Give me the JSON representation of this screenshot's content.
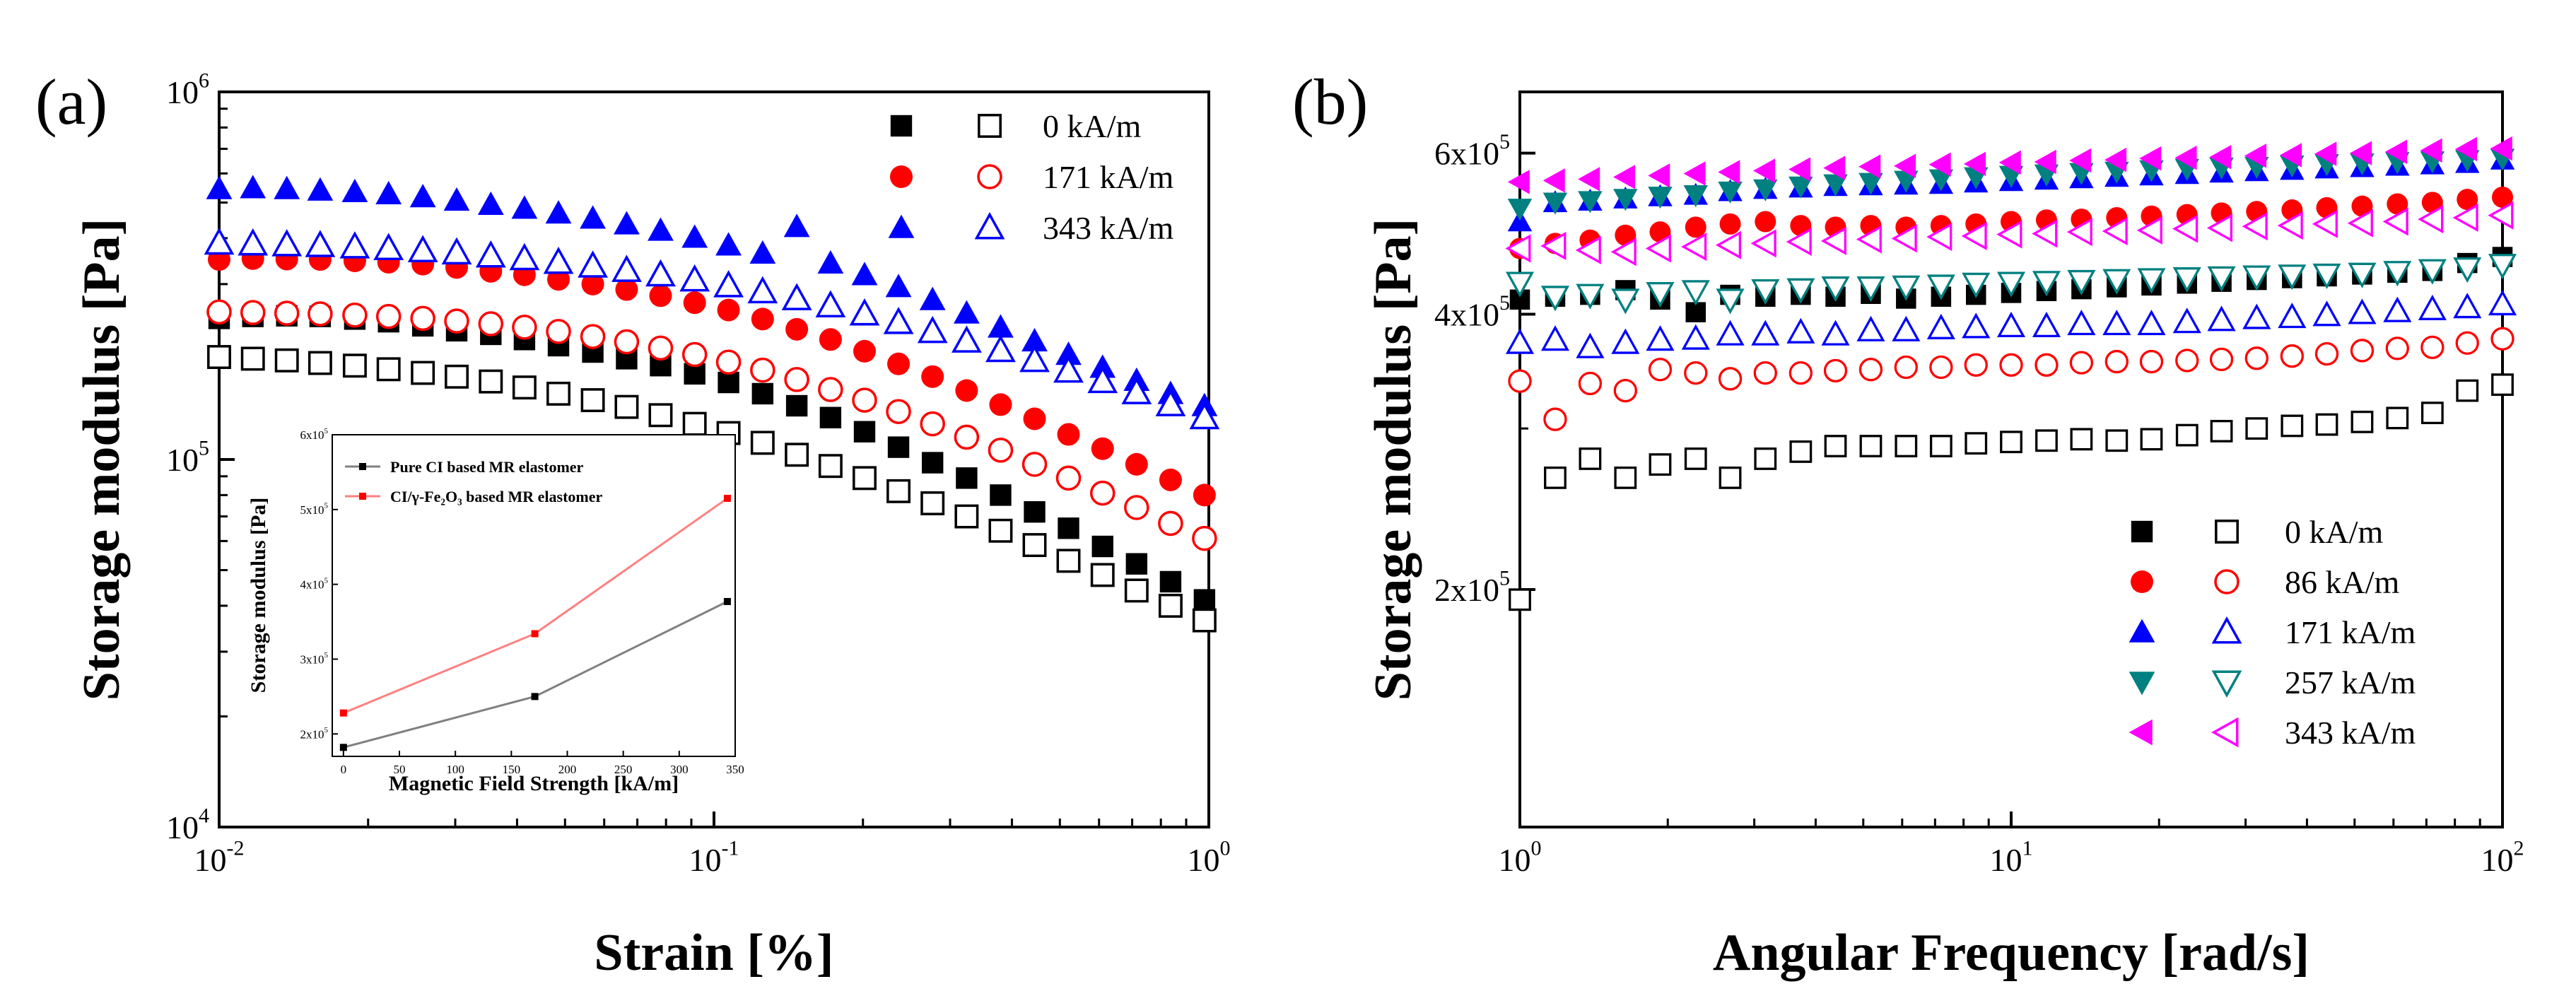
{
  "chart_data": [
    {
      "type": "scatter",
      "panel_label": "(a)",
      "xlabel": "Strain [%]",
      "ylabel": "Storage modulus [Pa]",
      "xscale": "log",
      "yscale": "log",
      "xlim": [
        0.01,
        1
      ],
      "ylim": [
        10000,
        1000000
      ],
      "x_ticks": [
        {
          "value": 0.01,
          "base": "10",
          "exp": "-2"
        },
        {
          "value": 0.1,
          "base": "10",
          "exp": "-1"
        },
        {
          "value": 1,
          "base": "10",
          "exp": "0"
        }
      ],
      "y_ticks": [
        {
          "value": 10000,
          "base": "10",
          "exp": "4"
        },
        {
          "value": 100000,
          "base": "10",
          "exp": "5"
        },
        {
          "value": 1000000,
          "base": "10",
          "exp": "6"
        }
      ],
      "legend_position": "top-right",
      "legend": [
        {
          "label": "0 kA/m",
          "color": "#000000",
          "marker": "square"
        },
        {
          "label": "171 kA/m",
          "color": "#ff0000",
          "marker": "circle"
        },
        {
          "label": "343 kA/m",
          "color": "#0000ff",
          "marker": "triangle-up"
        }
      ],
      "x": [
        0.01,
        0.0117,
        0.0137,
        0.016,
        0.0188,
        0.022,
        0.0258,
        0.0302,
        0.0354,
        0.0414,
        0.0485,
        0.0569,
        0.0666,
        0.078,
        0.0914,
        0.107,
        0.1254,
        0.147,
        0.172,
        0.2015,
        0.236,
        0.2765,
        0.324,
        0.3795,
        0.4445,
        0.5205,
        0.61,
        0.7145,
        0.837,
        0.98
      ],
      "series": [
        {
          "name": "CI/γ-Fe2O3 based",
          "field": "0 kA/m",
          "filled": true,
          "marker": "square",
          "color": "#000000",
          "values": [
            242000,
            245000,
            246000,
            245000,
            241000,
            237000,
            231000,
            224000,
            219000,
            212000,
            204000,
            196000,
            188000,
            180000,
            171000,
            162000,
            151000,
            140000,
            130000,
            119000,
            108000,
            98000,
            89000,
            80000,
            72000,
            65000,
            58000,
            52000,
            46500,
            41500
          ]
        },
        {
          "name": "Pure CI based",
          "field": "0 kA/m",
          "filled": false,
          "marker": "square",
          "color": "#000000",
          "values": [
            190000,
            188000,
            186000,
            183000,
            180000,
            176000,
            172000,
            168000,
            163000,
            157000,
            151000,
            145000,
            139000,
            132000,
            125000,
            118000,
            111000,
            103000,
            96000,
            89000,
            82000,
            76000,
            70000,
            64000,
            58500,
            53000,
            48500,
            44000,
            40000,
            36500
          ]
        },
        {
          "name": "CI/γ-Fe2O3 based",
          "field": "171 kA/m",
          "filled": true,
          "marker": "circle",
          "color": "#ff0000",
          "values": [
            350000,
            352000,
            351000,
            350000,
            347000,
            344000,
            340000,
            333000,
            325000,
            318000,
            309000,
            300000,
            290000,
            279000,
            267000,
            255000,
            241000,
            226000,
            212000,
            197000,
            182000,
            168000,
            154000,
            141000,
            129000,
            117000,
            107000,
            97000,
            88000,
            80000
          ]
        },
        {
          "name": "Pure CI based",
          "field": "171 kA/m",
          "filled": false,
          "marker": "circle",
          "color": "#ff0000",
          "values": [
            252000,
            251000,
            250000,
            249000,
            247000,
            245000,
            242000,
            238000,
            234000,
            229000,
            223000,
            216000,
            209000,
            201000,
            193000,
            184000,
            175000,
            165000,
            155000,
            145000,
            135000,
            125000,
            115000,
            106000,
            97000,
            89000,
            81000,
            74000,
            67000,
            61000
          ]
        },
        {
          "name": "CI/γ-Fe2O3 based",
          "field": "343 kA/m",
          "filled": true,
          "marker": "triangle-up",
          "color": "#0000ff",
          "values": [
            545000,
            548000,
            545000,
            540000,
            535000,
            528000,
            518000,
            507000,
            494000,
            482000,
            468000,
            453000,
            437000,
            420000,
            402000,
            383000,
            364000,
            430000,
            342000,
            318000,
            295000,
            272000,
            250000,
            229000,
            210000,
            193000,
            178000,
            164000,
            151000,
            140000
          ]
        },
        {
          "name": "Pure CI based",
          "field": "343 kA/m",
          "filled": false,
          "marker": "triangle-up",
          "color": "#0000ff",
          "values": [
            388000,
            386000,
            384000,
            382000,
            379000,
            375000,
            370000,
            365000,
            358000,
            352000,
            344000,
            336000,
            327000,
            318000,
            308000,
            297000,
            286000,
            274000,
            262000,
            249000,
            236000,
            223000,
            210000,
            198000,
            186000,
            174000,
            163000,
            152000,
            141000,
            130000
          ]
        }
      ],
      "inset": {
        "type": "line",
        "xlabel": "Magnetic Field Strength [kA/m]",
        "ylabel": "Storage modulus [Pa]",
        "xlim": [
          -10,
          350
        ],
        "ylim": [
          170000,
          600000
        ],
        "x_ticks": [
          "0",
          "50",
          "100",
          "150",
          "200",
          "250",
          "300",
          "350"
        ],
        "x_tick_values": [
          0,
          50,
          100,
          150,
          200,
          250,
          300,
          350
        ],
        "y_ticks": [
          {
            "value": 200000,
            "base": "2x10",
            "exp": "5"
          },
          {
            "value": 300000,
            "base": "3x10",
            "exp": "5"
          },
          {
            "value": 400000,
            "base": "4x10",
            "exp": "5"
          },
          {
            "value": 500000,
            "base": "5x10",
            "exp": "5"
          },
          {
            "value": 600000,
            "base": "6x10",
            "exp": "5"
          }
        ],
        "legend_position": "top-left",
        "x": [
          0,
          171,
          343
        ],
        "series": [
          {
            "name": "Pure CI based MR elastomer",
            "color": "#000000",
            "line_color": "#808080",
            "values": [
              182000,
              250000,
              377000
            ]
          },
          {
            "name": "CI/γ-Fe₂O₃ based MR elastomer",
            "color": "#ff0000",
            "line_color": "#ff8080",
            "values": [
              228000,
              334000,
              515000
            ]
          }
        ]
      }
    },
    {
      "type": "scatter",
      "panel_label": "(b)",
      "xlabel": "Angular Frequency [rad/s]",
      "ylabel": "Storage modulus [Pa]",
      "xscale": "log",
      "yscale": "log",
      "xlim": [
        1,
        100
      ],
      "ylim": [
        110000,
        700000
      ],
      "x_ticks": [
        {
          "value": 1,
          "base": "10",
          "exp": "0"
        },
        {
          "value": 10,
          "base": "10",
          "exp": "1"
        },
        {
          "value": 100,
          "base": "10",
          "exp": "2"
        }
      ],
      "y_ticks": [
        {
          "value": 200000,
          "base": "2x10",
          "exp": "5"
        },
        {
          "value": 400000,
          "base": "4x10",
          "exp": "5"
        },
        {
          "value": 600000,
          "base": "6x10",
          "exp": "5"
        }
      ],
      "legend_position": "bottom-right",
      "legend": [
        {
          "label": "0 kA/m",
          "color": "#000000",
          "marker": "square"
        },
        {
          "label": "86 kA/m",
          "color": "#ff0000",
          "marker": "circle"
        },
        {
          "label": "171 kA/m",
          "color": "#0000ff",
          "marker": "triangle-up"
        },
        {
          "label": "257 kA/m",
          "color": "#008080",
          "marker": "triangle-down"
        },
        {
          "label": "343 kA/m",
          "color": "#ff00ff",
          "marker": "triangle-left"
        }
      ],
      "x": [
        1,
        1.18,
        1.39,
        1.64,
        1.93,
        2.28,
        2.68,
        3.16,
        3.73,
        4.39,
        5.18,
        6.11,
        7.2,
        8.48,
        10,
        11.8,
        13.9,
        16.4,
        19.3,
        22.8,
        26.8,
        31.6,
        37.3,
        43.9,
        51.8,
        61.1,
        72,
        84.8,
        100
      ],
      "series": [
        {
          "name": "CI/γ-Fe2O3 based",
          "field": "0 kA/m",
          "filled": true,
          "marker": "square",
          "color": "#000000",
          "values": [
            415000,
            418000,
            420000,
            425000,
            415000,
            402000,
            420000,
            418000,
            420000,
            418000,
            421000,
            416000,
            418000,
            420000,
            422000,
            424000,
            426000,
            428000,
            430000,
            432000,
            434000,
            436000,
            438000,
            440000,
            442000,
            444000,
            446000,
            455000,
            462000
          ]
        },
        {
          "name": "Pure CI based",
          "field": "0 kA/m",
          "filled": false,
          "marker": "square",
          "color": "#000000",
          "values": [
            195000,
            265000,
            278000,
            265000,
            274000,
            278000,
            265000,
            278000,
            283000,
            287000,
            287000,
            287000,
            287000,
            289000,
            290000,
            291000,
            292000,
            291000,
            292000,
            295000,
            298000,
            300000,
            302000,
            303000,
            305000,
            308000,
            312000,
            330000,
            335000
          ]
        },
        {
          "name": "CI/γ-Fe2O3 based",
          "field": "86 kA/m",
          "filled": true,
          "marker": "circle",
          "color": "#ff0000",
          "values": [
            472000,
            478000,
            482000,
            488000,
            492000,
            498000,
            502000,
            505000,
            500000,
            498000,
            500000,
            498000,
            500000,
            502000,
            505000,
            507000,
            508000,
            510000,
            512000,
            514000,
            516000,
            518000,
            520000,
            523000,
            525000,
            528000,
            530000,
            534000,
            537000
          ]
        },
        {
          "name": "Pure CI based",
          "field": "86 kA/m",
          "filled": false,
          "marker": "circle",
          "color": "#ff0000",
          "values": [
            338000,
            307000,
            336000,
            330000,
            348000,
            345000,
            340000,
            345000,
            345000,
            347000,
            348000,
            350000,
            350000,
            352000,
            352000,
            352000,
            354000,
            355000,
            355000,
            356000,
            357000,
            358000,
            360000,
            362000,
            365000,
            367000,
            368000,
            372000,
            376000
          ]
        },
        {
          "name": "CI/γ-Fe2O3 based",
          "field": "171 kA/m",
          "filled": true,
          "marker": "triangle-up",
          "color": "#0000ff",
          "values": [
            505000,
            530000,
            532000,
            535000,
            538000,
            540000,
            545000,
            548000,
            550000,
            552000,
            553000,
            554000,
            555000,
            557000,
            559000,
            561000,
            563000,
            565000,
            567000,
            569000,
            571000,
            573000,
            575000,
            577000,
            579000,
            581000,
            583000,
            585000,
            590000
          ]
        },
        {
          "name": "Pure CI based",
          "field": "171 kA/m",
          "filled": false,
          "marker": "triangle-up",
          "color": "#0000ff",
          "values": [
            372000,
            375000,
            368000,
            372000,
            375000,
            376000,
            380000,
            380000,
            382000,
            380000,
            384000,
            384000,
            386000,
            387000,
            388000,
            388000,
            390000,
            390000,
            390000,
            392000,
            394000,
            396000,
            397000,
            399000,
            401000,
            403000,
            405000,
            407000,
            410000
          ]
        },
        {
          "name": "CI/γ-Fe2O3 based",
          "field": "257 kA/m",
          "filled": true,
          "marker": "triangle-down",
          "color": "#008080",
          "values": [
            522000,
            530000,
            532000,
            535000,
            538000,
            540000,
            545000,
            548000,
            552000,
            555000,
            557000,
            560000,
            562000,
            565000,
            567000,
            569000,
            571000,
            573000,
            575000,
            577000,
            579000,
            580000,
            582000,
            584000,
            585000,
            587000,
            588000,
            590000,
            592000
          ]
        },
        {
          "name": "Pure CI based",
          "field": "257 kA/m",
          "filled": false,
          "marker": "triangle-down",
          "color": "#008080",
          "values": [
            433000,
            418000,
            420000,
            415000,
            422000,
            424000,
            415000,
            425000,
            426000,
            428000,
            428000,
            429000,
            430000,
            432000,
            433000,
            434000,
            435000,
            436000,
            437000,
            438000,
            439000,
            440000,
            441000,
            442000,
            443000,
            445000,
            447000,
            449000,
            453000
          ]
        },
        {
          "name": "CI/γ-Fe2O3 based",
          "field": "343 kA/m",
          "filled": true,
          "marker": "triangle-left",
          "color": "#ff00ff",
          "values": [
            558000,
            560000,
            562000,
            565000,
            567000,
            570000,
            572000,
            574000,
            576000,
            578000,
            580000,
            581000,
            583000,
            584000,
            586000,
            587000,
            589000,
            590000,
            592000,
            593000,
            594000,
            596000,
            597000,
            599000,
            600000,
            602000,
            604000,
            606000,
            607000
          ]
        },
        {
          "name": "Pure CI based",
          "field": "343 kA/m",
          "filled": false,
          "marker": "triangle-left",
          "color": "#ff00ff",
          "values": [
            472000,
            475000,
            470000,
            468000,
            472000,
            474000,
            476000,
            478000,
            480000,
            481000,
            483000,
            484000,
            486000,
            487000,
            489000,
            490000,
            492000,
            493000,
            494000,
            496000,
            497000,
            499000,
            500000,
            502000,
            503000,
            505000,
            508000,
            510000,
            513000
          ]
        }
      ]
    }
  ]
}
